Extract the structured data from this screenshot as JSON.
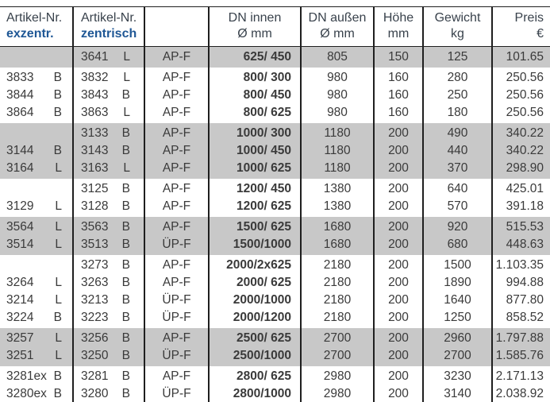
{
  "colors": {
    "accent_blue": "#1f5795",
    "band_gray": "#c8c8c8",
    "line_dark": "#1f1f1f",
    "body_text": "#3a3a3a",
    "header_text": "#39424c"
  },
  "table": {
    "columns": [
      {
        "line1": "Artikel-Nr.",
        "line2": "exzentr."
      },
      {
        "line1": "Artikel-Nr.",
        "line2": "zentrisch"
      },
      {
        "line1": "",
        "line2": ""
      },
      {
        "line1": "DN innen",
        "line2": "Ø mm"
      },
      {
        "line1": "DN außen",
        "line2": "Ø mm"
      },
      {
        "line1": "Höhe",
        "line2": "mm"
      },
      {
        "line1": "Gewicht",
        "line2": "kg"
      },
      {
        "line1": "Preis",
        "line2": "€"
      }
    ],
    "groups": [
      {
        "shaded": true,
        "rows": [
          {
            "ex": "",
            "ex_l": "",
            "ze": "3641",
            "ze_l": "L",
            "type": "AP-F",
            "dn_innen": "625/ 450",
            "dn_aussen": "805",
            "hoehe": "150",
            "gewicht": "125",
            "preis": "101.65"
          }
        ]
      },
      {
        "shaded": false,
        "rows": [
          {
            "ex": "3833",
            "ex_l": "B",
            "ze": "3832",
            "ze_l": "L",
            "type": "AP-F",
            "dn_innen": "800/ 300",
            "dn_aussen": "980",
            "hoehe": "160",
            "gewicht": "280",
            "preis": "250.56"
          },
          {
            "ex": "3844",
            "ex_l": "B",
            "ze": "3843",
            "ze_l": "B",
            "type": "AP-F",
            "dn_innen": "800/ 450",
            "dn_aussen": "980",
            "hoehe": "160",
            "gewicht": "250",
            "preis": "250.56"
          },
          {
            "ex": "3864",
            "ex_l": "B",
            "ze": "3863",
            "ze_l": "L",
            "type": "AP-F",
            "dn_innen": "800/ 625",
            "dn_aussen": "980",
            "hoehe": "160",
            "gewicht": "180",
            "preis": "250.56"
          }
        ]
      },
      {
        "shaded": true,
        "rows": [
          {
            "ex": "",
            "ex_l": "",
            "ze": "3133",
            "ze_l": "B",
            "type": "AP-F",
            "dn_innen": "1000/ 300",
            "dn_aussen": "1180",
            "hoehe": "200",
            "gewicht": "490",
            "preis": "340.22"
          },
          {
            "ex": "3144",
            "ex_l": "B",
            "ze": "3143",
            "ze_l": "B",
            "type": "AP-F",
            "dn_innen": "1000/ 450",
            "dn_aussen": "1180",
            "hoehe": "200",
            "gewicht": "440",
            "preis": "340.22"
          },
          {
            "ex": "3164",
            "ex_l": "L",
            "ze": "3163",
            "ze_l": "L",
            "type": "AP-F",
            "dn_innen": "1000/ 625",
            "dn_aussen": "1180",
            "hoehe": "200",
            "gewicht": "370",
            "preis": "298.90"
          }
        ]
      },
      {
        "shaded": false,
        "rows": [
          {
            "ex": "",
            "ex_l": "",
            "ze": "3125",
            "ze_l": "B",
            "type": "AP-F",
            "dn_innen": "1200/ 450",
            "dn_aussen": "1380",
            "hoehe": "200",
            "gewicht": "640",
            "preis": "425.01"
          },
          {
            "ex": "3129",
            "ex_l": "L",
            "ze": "3128",
            "ze_l": "B",
            "type": "AP-F",
            "dn_innen": "1200/ 625",
            "dn_aussen": "1380",
            "hoehe": "200",
            "gewicht": "570",
            "preis": "391.18"
          }
        ]
      },
      {
        "shaded": true,
        "rows": [
          {
            "ex": "3564",
            "ex_l": "L",
            "ze": "3563",
            "ze_l": "B",
            "type": "AP-F",
            "dn_innen": "1500/ 625",
            "dn_aussen": "1680",
            "hoehe": "200",
            "gewicht": "920",
            "preis": "515.53"
          },
          {
            "ex": "3514",
            "ex_l": "L",
            "ze": "3513",
            "ze_l": "B",
            "type": "ÜP-F",
            "dn_innen": "1500/1000",
            "dn_aussen": "1680",
            "hoehe": "200",
            "gewicht": "680",
            "preis": "448.63"
          }
        ]
      },
      {
        "shaded": false,
        "rows": [
          {
            "ex": "",
            "ex_l": "",
            "ze": "3273",
            "ze_l": "B",
            "type": "AP-F",
            "dn_innen": "2000/2x625",
            "dn_aussen": "2180",
            "hoehe": "200",
            "gewicht": "1500",
            "preis": "1.103.35"
          },
          {
            "ex": "3264",
            "ex_l": "L",
            "ze": "3263",
            "ze_l": "B",
            "type": "AP-F",
            "dn_innen": "2000/ 625",
            "dn_aussen": "2180",
            "hoehe": "200",
            "gewicht": "1890",
            "preis": "994.88"
          },
          {
            "ex": "3214",
            "ex_l": "L",
            "ze": "3213",
            "ze_l": "B",
            "type": "ÜP-F",
            "dn_innen": "2000/1000",
            "dn_aussen": "2180",
            "hoehe": "200",
            "gewicht": "1640",
            "preis": "877.80"
          },
          {
            "ex": "3224",
            "ex_l": "B",
            "ze": "3223",
            "ze_l": "B",
            "type": "ÜP-F",
            "dn_innen": "2000/1200",
            "dn_aussen": "2180",
            "hoehe": "200",
            "gewicht": "1250",
            "preis": "858.52"
          }
        ]
      },
      {
        "shaded": true,
        "rows": [
          {
            "ex": "3257",
            "ex_l": "L",
            "ze": "3256",
            "ze_l": "B",
            "type": "AP-F",
            "dn_innen": "2500/ 625",
            "dn_aussen": "2700",
            "hoehe": "200",
            "gewicht": "2960",
            "preis": "1.797.88"
          },
          {
            "ex": "3251",
            "ex_l": "L",
            "ze": "3250",
            "ze_l": "B",
            "type": "ÜP-F",
            "dn_innen": "2500/1000",
            "dn_aussen": "2700",
            "hoehe": "200",
            "gewicht": "2700",
            "preis": "1.585.76"
          }
        ]
      },
      {
        "shaded": false,
        "rows": [
          {
            "ex": "3281ex",
            "ex_l": "B",
            "ze": "3281",
            "ze_l": "B",
            "type": "AP-F",
            "dn_innen": "2800/ 625",
            "dn_aussen": "2980",
            "hoehe": "200",
            "gewicht": "3230",
            "preis": "2.171.13"
          },
          {
            "ex": "3280ex",
            "ex_l": "B",
            "ze": "3280",
            "ze_l": "B",
            "type": "ÜP-F",
            "dn_innen": "2800/1000",
            "dn_aussen": "2980",
            "hoehe": "200",
            "gewicht": "3140",
            "preis": "2.038.92"
          }
        ]
      }
    ]
  }
}
